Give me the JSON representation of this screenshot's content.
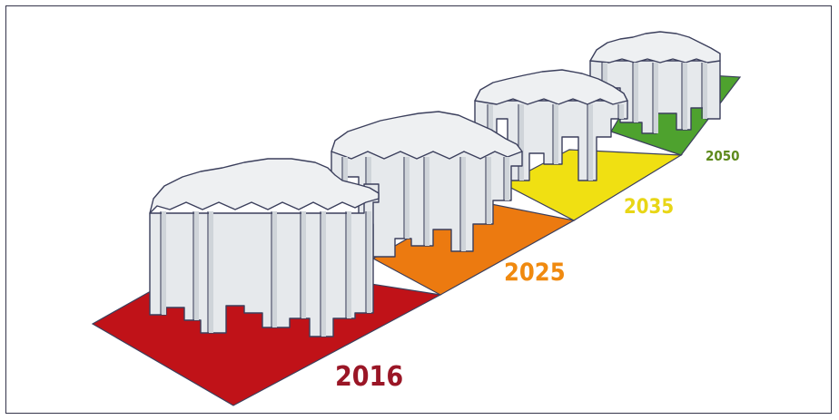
{
  "stages": [
    {
      "year": "2016",
      "color": "#c01218",
      "label_color": "#9a1626"
    },
    {
      "year": "2025",
      "color": "#ec7a10",
      "label_color": "#f08a10"
    },
    {
      "year": "2035",
      "color": "#f0e012",
      "label_color": "#e8d616"
    },
    {
      "year": "2050",
      "color": "#4ea22e",
      "label_color": "#5e8a1c"
    }
  ],
  "block_colors": {
    "face": "#e6e9ec",
    "face_shade": "#cfd4d9",
    "top": "#eef0f2",
    "outline": "#3b3f5c"
  }
}
